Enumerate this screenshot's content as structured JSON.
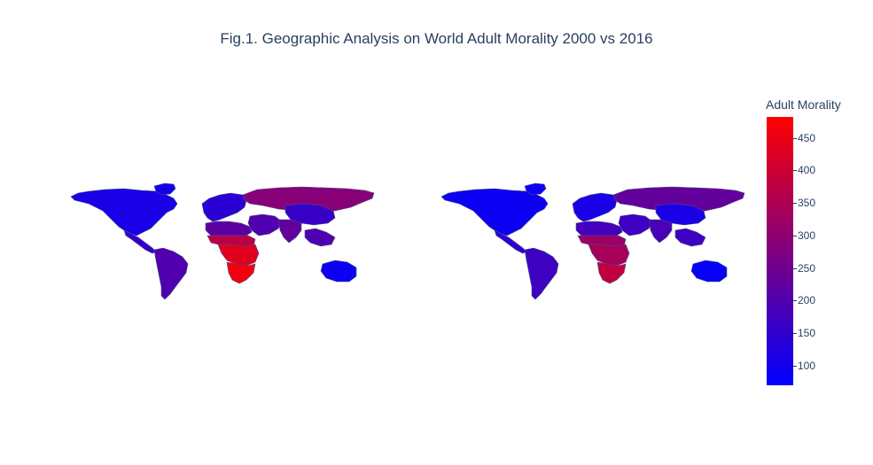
{
  "title": "Fig.1. Geographic Analysis on World Adult Morality 2000 vs 2016",
  "colorbar": {
    "title": "Adult Morality",
    "min": 70,
    "max": 482,
    "ticks": [
      450,
      400,
      350,
      300,
      250,
      200,
      150,
      100
    ],
    "colors": {
      "low": "#0000ff",
      "high": "#ff0000"
    }
  },
  "maps": [
    {
      "year": "2000",
      "regions": [
        {
          "name": "north-america",
          "value": 110
        },
        {
          "name": "greenland",
          "value": 105
        },
        {
          "name": "central-america",
          "value": 150
        },
        {
          "name": "south-america",
          "value": 200
        },
        {
          "name": "europe",
          "value": 140
        },
        {
          "name": "russia",
          "value": 290
        },
        {
          "name": "north-africa",
          "value": 220
        },
        {
          "name": "sahel",
          "value": 370
        },
        {
          "name": "central-africa",
          "value": 430
        },
        {
          "name": "southern-africa",
          "value": 460
        },
        {
          "name": "middle-east",
          "value": 200
        },
        {
          "name": "south-asia",
          "value": 230
        },
        {
          "name": "china",
          "value": 160
        },
        {
          "name": "southeast-asia",
          "value": 200
        },
        {
          "name": "australia",
          "value": 90
        }
      ]
    },
    {
      "year": "2016",
      "regions": [
        {
          "name": "north-america",
          "value": 90
        },
        {
          "name": "greenland",
          "value": 95
        },
        {
          "name": "central-america",
          "value": 140
        },
        {
          "name": "south-america",
          "value": 170
        },
        {
          "name": "europe",
          "value": 110
        },
        {
          "name": "russia",
          "value": 230
        },
        {
          "name": "north-africa",
          "value": 180
        },
        {
          "name": "sahel",
          "value": 320
        },
        {
          "name": "central-africa",
          "value": 340
        },
        {
          "name": "southern-africa",
          "value": 380
        },
        {
          "name": "middle-east",
          "value": 170
        },
        {
          "name": "south-asia",
          "value": 190
        },
        {
          "name": "china",
          "value": 110
        },
        {
          "name": "southeast-asia",
          "value": 170
        },
        {
          "name": "australia",
          "value": 80
        }
      ]
    }
  ]
}
